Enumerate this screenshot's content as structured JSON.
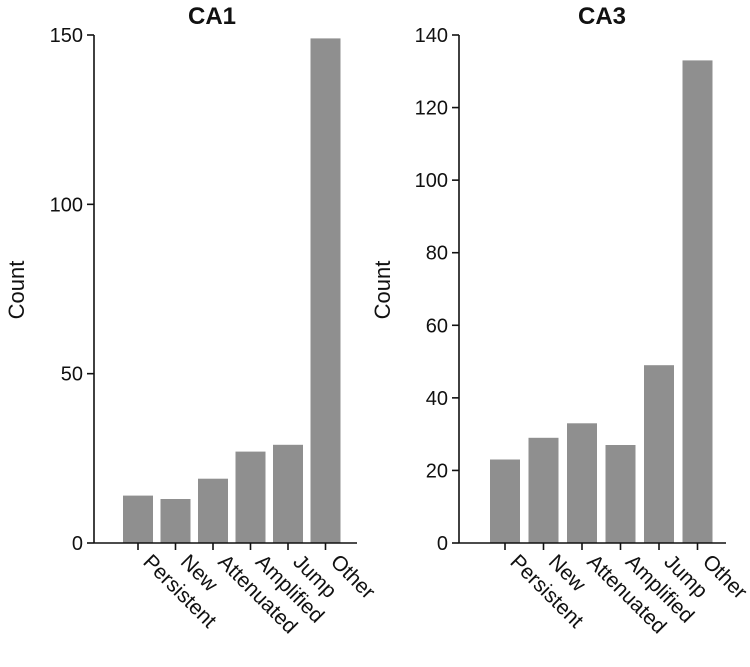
{
  "chart_data": [
    {
      "type": "bar",
      "title": "CA1",
      "ylabel": "Count",
      "categories": [
        "Persistent",
        "New",
        "Attenuated",
        "Amplified",
        "Jump",
        "Other"
      ],
      "values": [
        14,
        13,
        19,
        27,
        29,
        149
      ],
      "ylim": [
        0,
        150
      ],
      "yticks": [
        0,
        50,
        100,
        150
      ],
      "bar_color": "#8f8f8f",
      "grid": false,
      "legend": "none"
    },
    {
      "type": "bar",
      "title": "CA3",
      "ylabel": "Count",
      "categories": [
        "Persistent",
        "New",
        "Attenuated",
        "Amplified",
        "Jump",
        "Other"
      ],
      "values": [
        23,
        29,
        33,
        27,
        49,
        133
      ],
      "ylim": [
        0,
        140
      ],
      "yticks": [
        0,
        20,
        40,
        60,
        80,
        100,
        120,
        140
      ],
      "bar_color": "#8f8f8f",
      "grid": false,
      "legend": "none"
    }
  ]
}
